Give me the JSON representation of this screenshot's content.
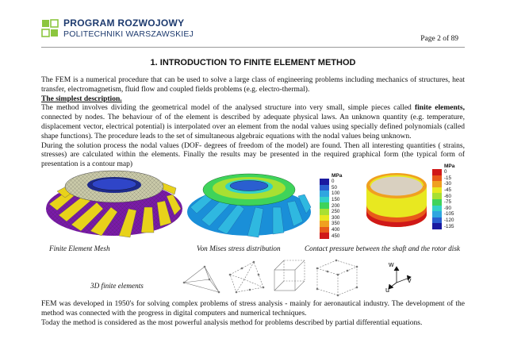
{
  "header": {
    "logo_line1": "PROGRAM ROZWOJOWY",
    "logo_line2": "POLITECHNIKI WARSZAWSKIEJ",
    "page_number": "Page 2 of 89"
  },
  "title": "1. INTRODUCTION TO FINITE ELEMENT METHOD",
  "paragraph1": "The FEM is a numerical procedure that can be used to solve a large class of engineering problems including mechanics of structures, heat transfer, electromagnetism, fluid flow  and coupled fields problems (e.g. electro-thermal).",
  "subheading": "The simplest description.",
  "paragraph2_pre": "The method involves dividing the geometrical model of the analysed structure into very small, simple pieces called ",
  "paragraph2_bold": "finite elements,",
  "paragraph2_post": " connected by nodes. The behaviour of of the element is described by adequate physical laws. An unknown quantity (e.g. temperature, displacement vector, electrical potential) is interpolated  over an element from the nodal values using specially defined polynomials (called shape functions). The procedure leads to the  set of simultaneous algebraic equations with the nodal values being unknown.",
  "paragraph3": "During the solution process  the nodal values (DOF- degrees of freedom of the model) are found. Then all interesting quantities ( strains, stresses) are calculated within the elements. Finally the results may be presented in the required graphical form (the typical form of presentation is a contour map)",
  "legend1": {
    "unit": "MPa",
    "labels": [
      "0",
      "50",
      "100",
      "150",
      "200",
      "250",
      "300",
      "350",
      "400",
      "450"
    ],
    "colors": [
      "#1a1aa0",
      "#2a5fd0",
      "#2fa6e0",
      "#33d1c8",
      "#3fd35a",
      "#a8e032",
      "#e8e820",
      "#f0a020",
      "#e85a1a",
      "#d01818"
    ]
  },
  "legend2": {
    "unit": "MPa",
    "labels": [
      "0",
      "-15",
      "-30",
      "-45",
      "-60",
      "-75",
      "-90",
      "-105",
      "-120",
      "-135"
    ],
    "colors": [
      "#d01818",
      "#e85a1a",
      "#f0a020",
      "#e8e820",
      "#a8e032",
      "#3fd35a",
      "#33d1c8",
      "#2fa6e0",
      "#2a5fd0",
      "#1a1aa0"
    ]
  },
  "captions": {
    "mesh": "Finite Element Mesh",
    "von_mises": "Von Mises stress distribution",
    "contact": "Contact pressure between the shaft and the rotor disk",
    "elements": "3D finite elements"
  },
  "axes_labels": {
    "w": "w",
    "v": "v",
    "u": "u"
  },
  "paragraph4": "FEM was developed in 1950's for solving complex problems of stress analysis - mainly for aeronautical industry. The development of the method was connected with the progress in digital computers and numerical techniques.",
  "paragraph5": "Today the method is considered as the most powerful analysis method for problems described by partial differential equations."
}
